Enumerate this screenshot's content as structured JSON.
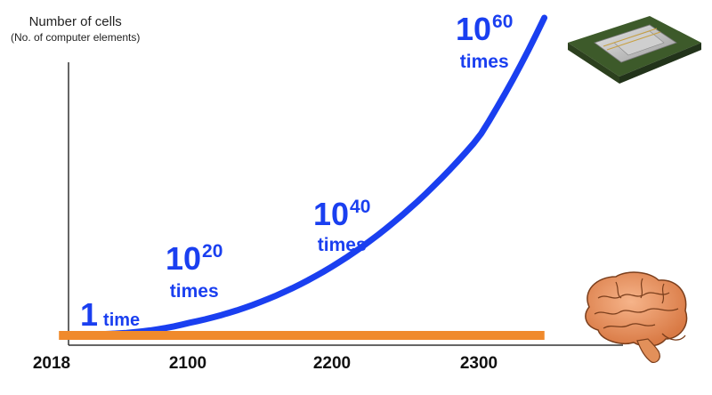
{
  "chart_data": {
    "type": "line",
    "ylabel": "Number of cells",
    "ylabel_sub": "(No. of computer elements)",
    "x_ticks": [
      "2018",
      "2100",
      "2200",
      "2300"
    ],
    "series": [
      {
        "role": "computer-growth",
        "color": "#1a3ff0",
        "x": [
          2020,
          2100,
          2200,
          2300,
          2345
        ],
        "y_exponent": [
          0,
          20,
          40,
          60,
          72
        ]
      },
      {
        "role": "human-brain-constant",
        "color": "#f08a2c",
        "x": [
          2020,
          2350
        ],
        "y_exponent": [
          0,
          0
        ]
      }
    ],
    "annotations": [
      {
        "id": "a0",
        "base": "1",
        "exp": "",
        "unit": "time"
      },
      {
        "id": "a20",
        "base": "10",
        "exp": "20",
        "unit": "times"
      },
      {
        "id": "a40",
        "base": "10",
        "exp": "40",
        "unit": "times"
      },
      {
        "id": "a60",
        "base": "10",
        "exp": "60",
        "unit": "times"
      }
    ],
    "images": [
      "cpu-chip",
      "human-brain"
    ]
  }
}
